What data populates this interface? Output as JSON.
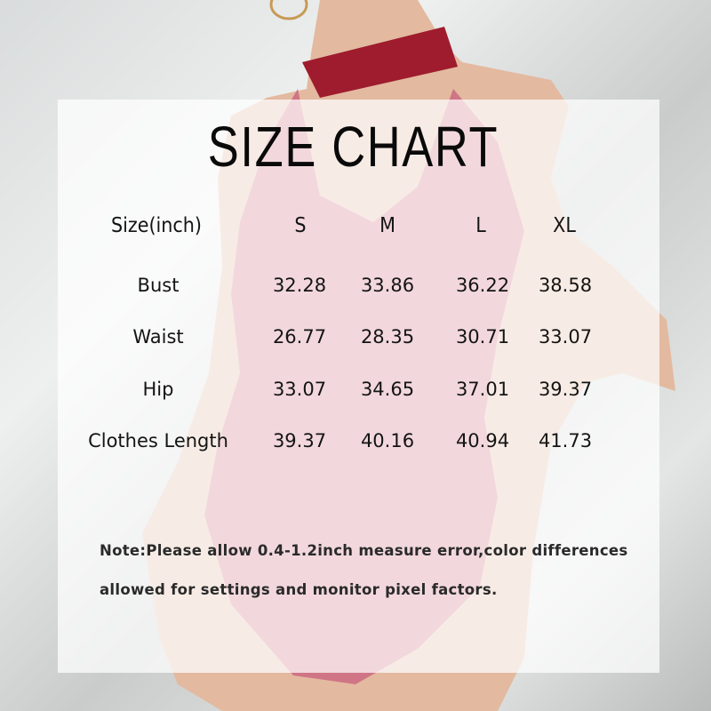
{
  "title": "SIZE CHART",
  "table": {
    "headers": [
      "Size(inch)",
      "S",
      "M",
      "L",
      "XL"
    ],
    "rows": [
      {
        "label": "Bust",
        "values": [
          "32.28",
          "33.86",
          "36.22",
          "38.58"
        ]
      },
      {
        "label": "Waist",
        "values": [
          "26.77",
          "28.35",
          "30.71",
          "33.07"
        ]
      },
      {
        "label": "Hip",
        "values": [
          "33.07",
          "34.65",
          "37.01",
          "39.37"
        ]
      },
      {
        "label": "Clothes Length",
        "values": [
          "39.37",
          "40.16",
          "40.94",
          "41.73"
        ]
      }
    ]
  },
  "note": {
    "line1": "Note:Please allow 0.4-1.2inch measure error,color differences",
    "line2": "allowed for settings and monitor pixel factors."
  },
  "colors": {
    "bodysuit": "#d07585",
    "collar": "#9e1c2e",
    "skin": "#e3b9a0"
  }
}
